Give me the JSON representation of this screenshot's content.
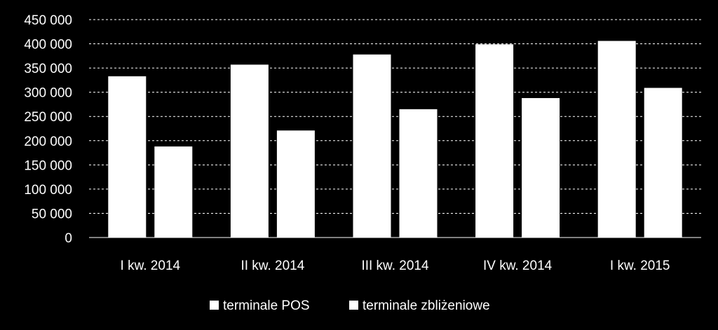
{
  "chart_data": {
    "type": "bar",
    "categories": [
      "I kw. 2014",
      "II kw. 2014",
      "III kw. 2014",
      "IV kw. 2014",
      "I kw. 2015"
    ],
    "series": [
      {
        "name": "terminale POS",
        "values": [
          333000,
          357000,
          378000,
          399000,
          406000
        ]
      },
      {
        "name": "terminale zbliżeniowe",
        "values": [
          188000,
          221000,
          265000,
          288000,
          309000
        ]
      }
    ],
    "ylim": [
      0,
      450000
    ],
    "ytick_values": [
      0,
      50000,
      100000,
      150000,
      200000,
      250000,
      300000,
      350000,
      400000,
      450000
    ],
    "ytick_labels": [
      "0",
      "50 000",
      "100 000",
      "150 000",
      "200 000",
      "250 000",
      "300 000",
      "350 000",
      "400 000",
      "450 000"
    ],
    "grid": true,
    "legend_position": "bottom",
    "title": "",
    "xlabel": "",
    "ylabel": "",
    "colors": {
      "background": "#000000",
      "bars": "#ffffff",
      "text": "#ffffff",
      "grid": "#ffffff"
    }
  }
}
